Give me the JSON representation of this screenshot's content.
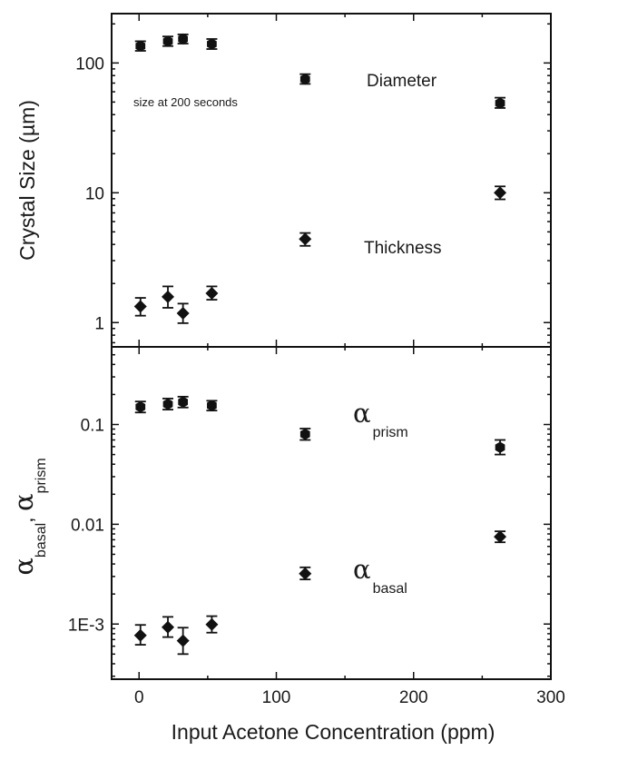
{
  "chart_data": {
    "type": "scatter",
    "xlabel": "Input Acetone Concentration (ppm)",
    "xlim": [
      -20,
      300
    ],
    "xticks": [
      0,
      100,
      200,
      300
    ],
    "xtick_labels": [
      "0",
      "100",
      "200",
      "300"
    ],
    "panels": [
      {
        "id": "top",
        "ylabel": "Crystal Size (µm)",
        "yscale": "log",
        "ylim": [
          0.65,
          240
        ],
        "yticks": [
          1,
          10,
          100
        ],
        "ytick_labels": [
          "1",
          "10",
          "100"
        ],
        "note": "size at 200 seconds",
        "series": [
          {
            "name": "Diameter",
            "label": "Diameter",
            "marker": "hexagon",
            "points": [
              {
                "x": 1,
                "y": 135,
                "lo": 124,
                "hi": 147
              },
              {
                "x": 21,
                "y": 147,
                "lo": 135,
                "hi": 160
              },
              {
                "x": 32,
                "y": 153,
                "lo": 141,
                "hi": 166
              },
              {
                "x": 53,
                "y": 140,
                "lo": 128,
                "hi": 153
              },
              {
                "x": 121,
                "y": 75,
                "lo": 69,
                "hi": 82
              },
              {
                "x": 263,
                "y": 49,
                "lo": 45,
                "hi": 54
              }
            ]
          },
          {
            "name": "Thickness",
            "label": "Thickness",
            "marker": "diamond",
            "points": [
              {
                "x": 1,
                "y": 1.33,
                "lo": 1.13,
                "hi": 1.55
              },
              {
                "x": 21,
                "y": 1.58,
                "lo": 1.3,
                "hi": 1.9
              },
              {
                "x": 32,
                "y": 1.18,
                "lo": 0.99,
                "hi": 1.4
              },
              {
                "x": 53,
                "y": 1.68,
                "lo": 1.5,
                "hi": 1.9
              },
              {
                "x": 121,
                "y": 4.4,
                "lo": 3.9,
                "hi": 4.9
              },
              {
                "x": 263,
                "y": 10,
                "lo": 8.9,
                "hi": 11.2
              }
            ]
          }
        ]
      },
      {
        "id": "bottom",
        "ylabel": "α_basal, α_prism",
        "ylabel_parts": {
          "symbol": "α",
          "sub1": "basal",
          "sep": ", ",
          "sub2": "prism"
        },
        "yscale": "log",
        "ylim": [
          0.00028,
          0.6
        ],
        "yticks": [
          0.001,
          0.01,
          0.1
        ],
        "ytick_labels": [
          "1E-3",
          "0.01",
          "0.1"
        ],
        "series": [
          {
            "name": "alpha_prism",
            "label": {
              "symbol": "α",
              "sub": "prism"
            },
            "marker": "hexagon",
            "points": [
              {
                "x": 1,
                "y": 0.15,
                "lo": 0.132,
                "hi": 0.17
              },
              {
                "x": 21,
                "y": 0.16,
                "lo": 0.141,
                "hi": 0.182
              },
              {
                "x": 32,
                "y": 0.168,
                "lo": 0.148,
                "hi": 0.19
              },
              {
                "x": 53,
                "y": 0.155,
                "lo": 0.138,
                "hi": 0.173
              },
              {
                "x": 121,
                "y": 0.08,
                "lo": 0.07,
                "hi": 0.091
              },
              {
                "x": 263,
                "y": 0.059,
                "lo": 0.05,
                "hi": 0.07
              }
            ]
          },
          {
            "name": "alpha_basal",
            "label": {
              "symbol": "α",
              "sub": "basal"
            },
            "marker": "diamond",
            "points": [
              {
                "x": 1,
                "y": 0.00077,
                "lo": 0.00062,
                "hi": 0.00098
              },
              {
                "x": 21,
                "y": 0.00093,
                "lo": 0.00074,
                "hi": 0.00118
              },
              {
                "x": 32,
                "y": 0.00068,
                "lo": 0.0005,
                "hi": 0.00092
              },
              {
                "x": 53,
                "y": 0.00099,
                "lo": 0.00082,
                "hi": 0.0012
              },
              {
                "x": 121,
                "y": 0.0032,
                "lo": 0.0028,
                "hi": 0.0037
              },
              {
                "x": 263,
                "y": 0.0075,
                "lo": 0.0066,
                "hi": 0.0085
              }
            ]
          }
        ]
      }
    ]
  }
}
